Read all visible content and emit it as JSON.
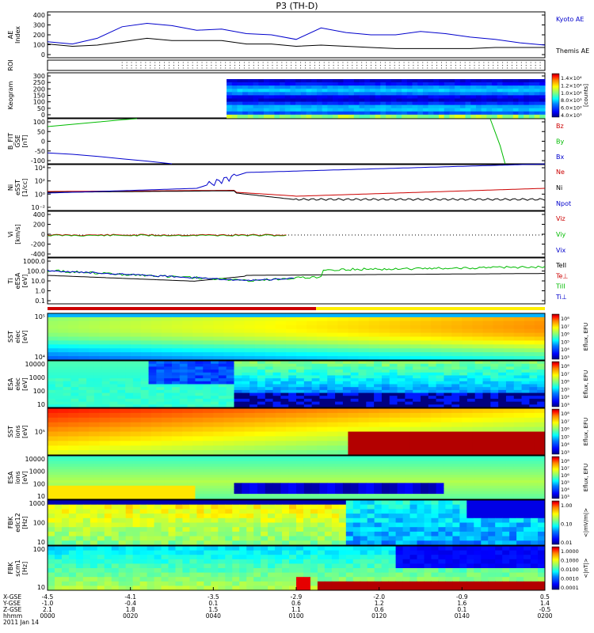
{
  "title": "P3 (TH-D)",
  "colors": {
    "blue": "#0000cc",
    "red": "#cc0000",
    "green": "#00bb00",
    "black": "#000000"
  },
  "jet_scale": [
    "#000080",
    "#0000ff",
    "#0080ff",
    "#00ffff",
    "#80ff80",
    "#ffff00",
    "#ff8000",
    "#ff0000",
    "#800000"
  ],
  "chart_data": [
    {
      "id": "ae",
      "type": "line",
      "ylabel": "AE Index",
      "ylim": [
        0,
        400
      ],
      "yticks": [
        "400",
        "300",
        "200",
        "100",
        "0"
      ],
      "legend": [
        {
          "name": "Kyoto AE",
          "color": "blue"
        },
        {
          "name": "Themis AE",
          "color": "black"
        }
      ],
      "series": [
        {
          "name": "Kyoto AE",
          "color": "blue",
          "x": [
            0,
            0.05,
            0.1,
            0.15,
            0.2,
            0.25,
            0.3,
            0.35,
            0.4,
            0.45,
            0.5,
            0.55,
            0.6,
            0.65,
            0.7,
            0.75,
            0.8,
            0.85,
            0.9,
            0.95,
            1.0
          ],
          "y": [
            140,
            120,
            170,
            270,
            300,
            280,
            240,
            250,
            210,
            200,
            160,
            260,
            220,
            200,
            200,
            230,
            210,
            180,
            160,
            130,
            110
          ]
        },
        {
          "name": "Themis AE",
          "color": "black",
          "x": [
            0,
            0.05,
            0.1,
            0.15,
            0.2,
            0.25,
            0.3,
            0.35,
            0.4,
            0.45,
            0.5,
            0.55,
            0.6,
            0.65,
            0.7,
            0.75,
            0.8,
            0.85,
            0.9,
            0.95,
            1.0
          ],
          "y": [
            120,
            100,
            110,
            140,
            170,
            150,
            150,
            150,
            120,
            120,
            100,
            110,
            100,
            90,
            80,
            80,
            80,
            80,
            90,
            90,
            90
          ]
        }
      ]
    },
    {
      "id": "roi",
      "type": "scatter",
      "ylabel": "ROI",
      "x_start": 0.15
    },
    {
      "id": "keogram",
      "type": "heatmap",
      "ylabel": "Keogram",
      "ylim": [
        0,
        300
      ],
      "yticks": [
        "300",
        "250",
        "200",
        "150",
        "100",
        "50",
        "0"
      ],
      "x_start": 0.36,
      "colorbar": {
        "labels": [
          "1.4×10⁴",
          "1.2×10⁴",
          "1.0×10⁴",
          "8.0×10³",
          "6.0×10³",
          "4.0×10³"
        ],
        "unit": "[counts]"
      }
    },
    {
      "id": "bfgm",
      "type": "line",
      "ylabel": "B_FIT GSE [nT]",
      "ylim": [
        -100,
        100
      ],
      "yticks": [
        "100",
        "50",
        "0",
        "-50",
        "-100"
      ],
      "legend": [
        {
          "name": "Bz",
          "color": "red"
        },
        {
          "name": "By",
          "color": "green"
        },
        {
          "name": "Bx",
          "color": "blue"
        }
      ],
      "series": [
        {
          "name": "By",
          "color": "green",
          "x": [
            0,
            0.05,
            0.1,
            0.15,
            0.18
          ],
          "y": [
            65,
            75,
            85,
            95,
            100
          ]
        },
        {
          "name": "By",
          "color": "green",
          "x": [
            0.89,
            0.9,
            0.91,
            0.92
          ],
          "y": [
            100,
            40,
            -20,
            -100
          ]
        },
        {
          "name": "Bx",
          "color": "blue",
          "x": [
            0,
            0.05,
            0.1,
            0.15,
            0.2,
            0.25
          ],
          "y": [
            -52,
            -58,
            -67,
            -78,
            -88,
            -100
          ]
        }
      ]
    },
    {
      "id": "density",
      "type": "line",
      "ylabel": "Ni eSST [1/cc]",
      "yticks": [
        "10⁴",
        "10²",
        "10⁰",
        "10⁻²"
      ],
      "legend": [
        {
          "name": "Ne",
          "color": "red"
        },
        {
          "name": "Ni",
          "color": "black"
        },
        {
          "name": "Npot",
          "color": "blue"
        }
      ]
    },
    {
      "id": "velocity",
      "type": "line",
      "ylabel": "Vi [km/s]",
      "ylim": [
        -500,
        500
      ],
      "yticks": [
        "400",
        "200",
        "0",
        "-200",
        "-400"
      ],
      "legend": [
        {
          "name": "Viz",
          "color": "red"
        },
        {
          "name": "Viy",
          "color": "green"
        },
        {
          "name": "Vix",
          "color": "blue"
        }
      ]
    },
    {
      "id": "temperature",
      "type": "line",
      "ylabel": "Ti eESA [eV]",
      "yticks": [
        "1000.0",
        "100.0",
        "10.0",
        "1.0",
        "0.1"
      ],
      "legend": [
        {
          "name": "TeII",
          "color": "black"
        },
        {
          "name": "Te⊥",
          "color": "red"
        },
        {
          "name": "TiII",
          "color": "green"
        },
        {
          "name": "Ti⊥",
          "color": "blue"
        }
      ]
    },
    {
      "id": "sst_e",
      "type": "heatmap",
      "ylabel": "SST elec [eV]",
      "yticks": [
        "10⁵",
        "10⁴"
      ],
      "colorbar": {
        "labels": [
          "10⁸",
          "10⁷",
          "10⁶",
          "10⁵",
          "10⁴",
          "10³"
        ],
        "unit": "Eflux, EFU"
      }
    },
    {
      "id": "esa_e",
      "type": "heatmap",
      "ylabel": "ESA elec [eV]",
      "yticks": [
        "10000",
        "1000",
        "100",
        "10"
      ],
      "colorbar": {
        "labels": [
          "10⁸",
          "10⁷",
          "10⁶",
          "10⁵",
          "10⁴",
          "10³"
        ],
        "unit": "Eflux, EFU"
      }
    },
    {
      "id": "sst_i",
      "type": "heatmap",
      "ylabel": "SST ions [eV]",
      "yticks": [
        "10⁵"
      ],
      "colorbar": {
        "labels": [
          "10⁸",
          "10⁷",
          "10⁶",
          "10⁵",
          "10⁴",
          "10³"
        ],
        "unit": "Eflux, EFU"
      }
    },
    {
      "id": "esa_i",
      "type": "heatmap",
      "ylabel": "ESA ions [eV]",
      "yticks": [
        "10000",
        "1000",
        "100",
        "10"
      ],
      "colorbar": {
        "labels": [
          "10⁸",
          "10⁷",
          "10⁶",
          "10⁵",
          "10⁴",
          "10³"
        ],
        "unit": "Eflux, EFU"
      }
    },
    {
      "id": "fbk_e",
      "type": "heatmap",
      "ylabel": "FBK edc12 [Hz]",
      "yticks": [
        "1000",
        "100",
        "10"
      ],
      "colorbar": {
        "labels": [
          "1.00",
          "0.10",
          "0.01"
        ],
        "unit": "<|mV/m|>"
      }
    },
    {
      "id": "fbk_b",
      "type": "heatmap",
      "ylabel": "FBK scm1 [Hz]",
      "yticks": [
        "100",
        "10"
      ],
      "colorbar": {
        "labels": [
          "1.0000",
          "0.1000",
          "0.0100",
          "0.0010",
          "0.0001"
        ],
        "unit": "<|nT|>"
      }
    }
  ],
  "x_axis": {
    "row_labels": [
      "X-GSE",
      "Y-GSE",
      "Z-GSE",
      "hhmm",
      "2011 Jan 14"
    ],
    "ticks": [
      {
        "rows": [
          "-4.5",
          "-1.0",
          "2.1",
          "0000"
        ]
      },
      {
        "rows": [
          "-4.1",
          "-0.4",
          "1.8",
          "0020"
        ]
      },
      {
        "rows": [
          "-3.5",
          "0.1",
          "1.5",
          "0040"
        ]
      },
      {
        "rows": [
          "-2.9",
          "0.6",
          "1.1",
          "0100"
        ]
      },
      {
        "rows": [
          "-2.0",
          "1.2",
          "0.6",
          "0120"
        ]
      },
      {
        "rows": [
          "-0.9",
          "1.6",
          "0.1",
          "0140"
        ]
      },
      {
        "rows": [
          "0.5",
          "1.4",
          "-0.5",
          "0200"
        ]
      }
    ]
  }
}
